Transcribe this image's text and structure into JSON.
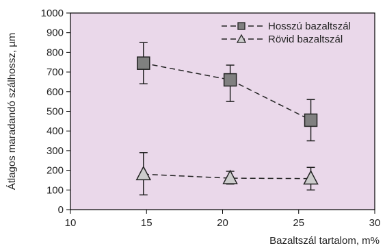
{
  "chart_data": {
    "type": "scatter",
    "title": "",
    "xlabel": "Bazaltszál tartalom, m%",
    "ylabel": "Átlagos maradandó szálhossz, µm",
    "xlim": [
      10,
      30
    ],
    "ylim": [
      0,
      1000
    ],
    "xticks": [
      "10",
      "15",
      "20",
      "25",
      "30"
    ],
    "yticks": [
      "0",
      "100",
      "200",
      "300",
      "400",
      "500",
      "600",
      "700",
      "800",
      "900",
      "1000"
    ],
    "grid": false,
    "legend_position": "top-right",
    "plot_background": "#ead8ea",
    "series": [
      {
        "name": "Hosszú bazaltszál",
        "marker": "square",
        "line": "dashed",
        "color": "#808080",
        "x": [
          14.8,
          20.5,
          25.8
        ],
        "y": [
          745,
          660,
          455
        ],
        "err_low": [
          640,
          550,
          350
        ],
        "err_high": [
          850,
          735,
          560
        ]
      },
      {
        "name": "Rövid bazaltszál",
        "marker": "triangle",
        "line": "dashed",
        "color": "#cccccc",
        "x": [
          14.8,
          20.5,
          25.8
        ],
        "y": [
          180,
          160,
          158
        ],
        "err_low": [
          75,
          130,
          100
        ],
        "err_high": [
          290,
          195,
          215
        ]
      }
    ]
  }
}
